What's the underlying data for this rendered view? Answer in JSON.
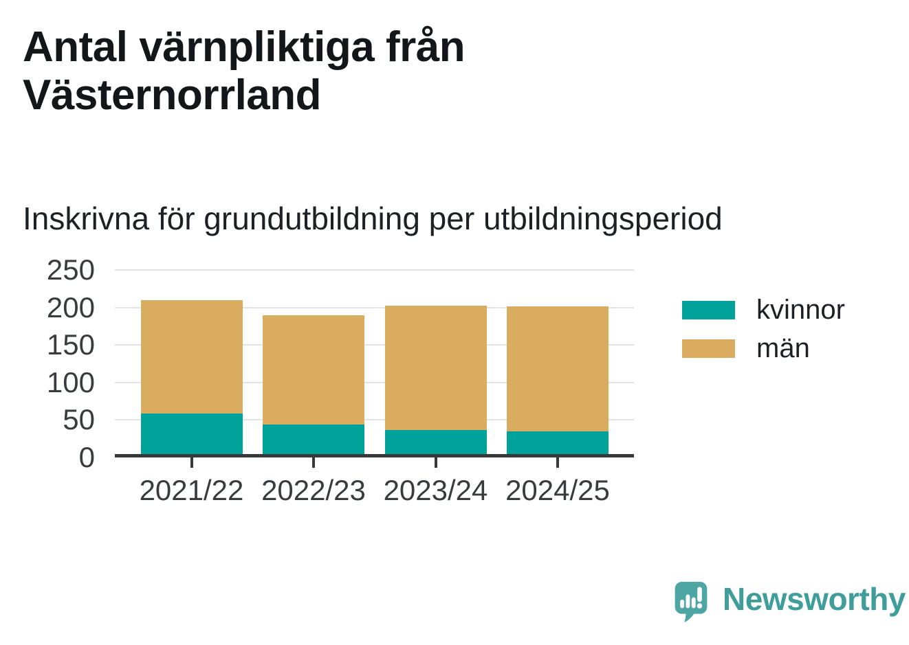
{
  "header": {
    "title": "Antal värnpliktiga från Västernorrland",
    "subtitle": "Inskrivna för grundutbildning per utbildningsperiod"
  },
  "chart_data": {
    "type": "bar",
    "stacked": true,
    "title": "Antal värnpliktiga från Västernorrland",
    "subtitle": "Inskrivna för grundutbildning per utbildningsperiod",
    "categories": [
      "2021/22",
      "2022/23",
      "2023/24",
      "2024/25"
    ],
    "series": [
      {
        "name": "kvinnor",
        "color": "#00a29a",
        "values": [
          58,
          44,
          36,
          34
        ]
      },
      {
        "name": "män",
        "color": "#d9ac5f",
        "values": [
          152,
          145,
          166,
          167
        ]
      }
    ],
    "totals": [
      210,
      189,
      202,
      201
    ],
    "xlabel": "",
    "ylabel": "",
    "ylim": [
      0,
      250
    ],
    "yticks": [
      0,
      50,
      100,
      150,
      200,
      250
    ],
    "grid": "horizontal",
    "legend_position": "right"
  },
  "footer": {
    "brand": "Newsworthy",
    "brand_color": "#3f9e9b",
    "icon_color": "#4da6a3"
  }
}
